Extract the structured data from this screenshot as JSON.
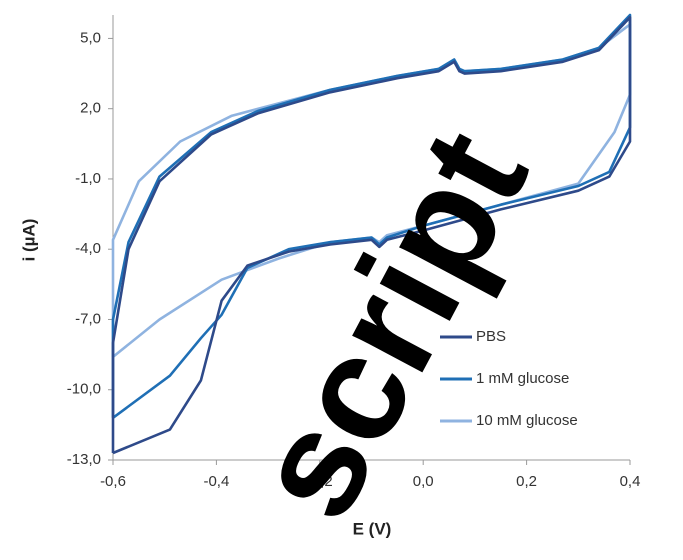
{
  "chart_data": {
    "type": "line",
    "xlabel": "E (V)",
    "ylabel": "i (µA)",
    "xlim": [
      -0.6,
      0.4
    ],
    "xticks": [
      {
        "value": -0.6,
        "label": "-0,6"
      },
      {
        "value": -0.4,
        "label": "-0,4"
      },
      {
        "value": -0.2,
        "label": "-0,2"
      },
      {
        "value": 0,
        "label": "0,0"
      },
      {
        "value": 0.2,
        "label": "0,2"
      },
      {
        "value": 0.4,
        "label": "0,4"
      }
    ],
    "ylim": [
      -13,
      6
    ],
    "yticks": [
      {
        "value": -13,
        "label": "-13,0"
      },
      {
        "value": -10,
        "label": "-10,0"
      },
      {
        "value": -7,
        "label": "-7,0"
      },
      {
        "value": -4,
        "label": "-4,0"
      },
      {
        "value": -1,
        "label": "-1,0"
      },
      {
        "value": 2,
        "label": "2,0"
      },
      {
        "value": 5,
        "label": "5,0"
      }
    ],
    "legend": "lower right",
    "series": [
      {
        "name": "10 mM glucose",
        "color": "#8fb3e0",
        "x": [
          -0.6,
          -0.6,
          -0.55,
          -0.47,
          -0.37,
          -0.18,
          -0.05,
          0.03,
          0.06,
          0.07,
          0.08,
          0.15,
          0.27,
          0.34,
          0.4,
          0.4,
          0.37,
          0.3,
          0.15,
          0.0,
          -0.07,
          -0.085,
          -0.1,
          -0.18,
          -0.28,
          -0.39,
          -0.51,
          -0.6
        ],
        "values": [
          -8.6,
          -3.6,
          -1.1,
          0.6,
          1.7,
          2.8,
          3.4,
          3.7,
          4.0,
          3.7,
          3.6,
          3.7,
          4.1,
          4.6,
          5.6,
          2.6,
          1.0,
          -1.2,
          -2.1,
          -3.0,
          -3.4,
          -3.7,
          -3.5,
          -3.7,
          -4.4,
          -5.3,
          -7.0,
          -8.6
        ]
      },
      {
        "name": "1 mM glucose",
        "color": "#1f6fb5",
        "x": [
          -0.6,
          -0.6,
          -0.57,
          -0.51,
          -0.41,
          -0.32,
          -0.18,
          -0.05,
          0.03,
          0.06,
          0.07,
          0.08,
          0.15,
          0.27,
          0.34,
          0.4,
          0.4,
          0.36,
          0.3,
          0.15,
          0.0,
          -0.07,
          -0.085,
          -0.1,
          -0.18,
          -0.26,
          -0.34,
          -0.39,
          -0.43,
          -0.49,
          -0.6
        ],
        "values": [
          -11.2,
          -7.0,
          -3.7,
          -0.9,
          1.0,
          1.9,
          2.8,
          3.4,
          3.7,
          4.1,
          3.7,
          3.6,
          3.7,
          4.1,
          4.6,
          6.0,
          1.2,
          -0.7,
          -1.3,
          -2.1,
          -3.0,
          -3.5,
          -3.8,
          -3.5,
          -3.7,
          -4.0,
          -4.8,
          -6.8,
          -7.8,
          -9.4,
          -11.2
        ]
      },
      {
        "name": "PBS",
        "color": "#2e4a8a",
        "x": [
          -0.6,
          -0.6,
          -0.57,
          -0.51,
          -0.41,
          -0.32,
          -0.18,
          -0.05,
          0.03,
          0.06,
          0.07,
          0.08,
          0.15,
          0.27,
          0.34,
          0.4,
          0.4,
          0.36,
          0.3,
          0.15,
          0.0,
          -0.07,
          -0.085,
          -0.1,
          -0.18,
          -0.26,
          -0.34,
          -0.39,
          -0.43,
          -0.49,
          -0.6
        ],
        "values": [
          -12.7,
          -8.0,
          -4.0,
          -1.1,
          0.9,
          1.8,
          2.7,
          3.3,
          3.6,
          4.0,
          3.6,
          3.5,
          3.6,
          4.0,
          4.5,
          5.9,
          0.6,
          -0.9,
          -1.5,
          -2.3,
          -3.2,
          -3.6,
          -3.9,
          -3.6,
          -3.8,
          -4.1,
          -4.7,
          -6.2,
          -9.6,
          -11.7,
          -12.7
        ]
      }
    ],
    "watermark": "script"
  }
}
